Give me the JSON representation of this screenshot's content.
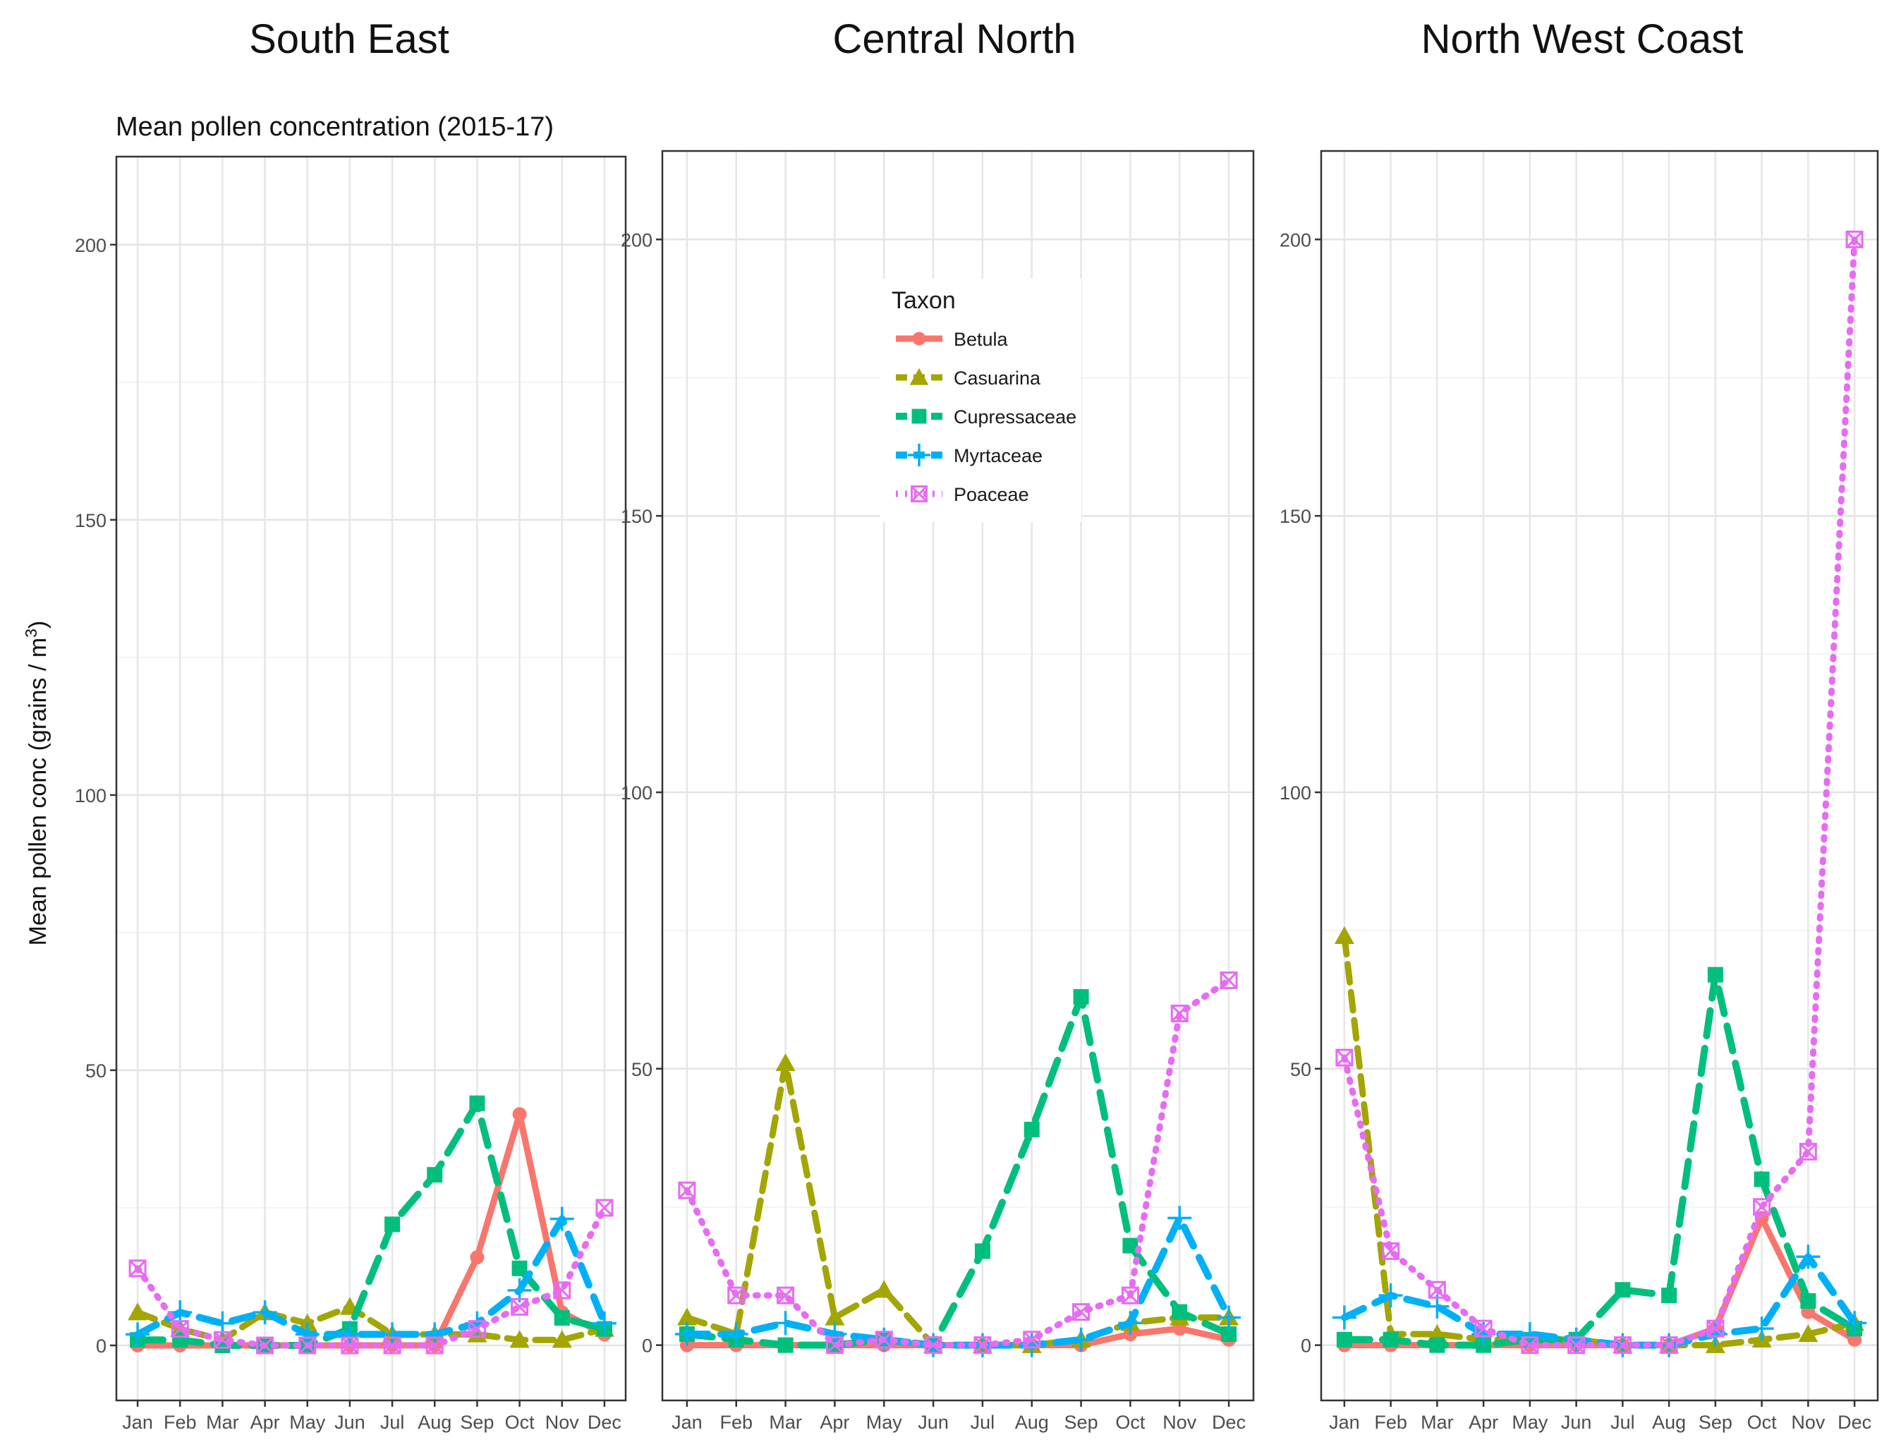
{
  "figure": {
    "subtitle": "Mean pollen concentration (2015-17)",
    "ylabel_main": "Mean pollen conc (grains / m",
    "ylabel_sup": "3",
    "ylabel_close": ")"
  },
  "legend": {
    "title": "Taxon",
    "position": "top-left of Central North panel"
  },
  "colors": {
    "Betula": "#F8766D",
    "Casuarina": "#A3A500",
    "Cupressaceae": "#00BF7D",
    "Myrtaceae": "#00B0F6",
    "Poaceae": "#E76BF3"
  },
  "chart_data": [
    {
      "type": "line",
      "title": "South East",
      "xlabel": "",
      "ylabel": "Mean pollen conc (grains / m3)",
      "ylim": [
        -10,
        216
      ],
      "yticks": [
        0,
        50,
        100,
        150,
        200
      ],
      "grid": true,
      "categories": [
        "Jan",
        "Feb",
        "Mar",
        "Apr",
        "May",
        "Jun",
        "Jul",
        "Aug",
        "Sep",
        "Oct",
        "Nov",
        "Dec"
      ],
      "series": [
        {
          "name": "Betula",
          "values": [
            0,
            0,
            0,
            0,
            0,
            0,
            0,
            0,
            16,
            42,
            6,
            2
          ]
        },
        {
          "name": "Casuarina",
          "values": [
            6,
            3,
            1,
            6,
            4,
            7,
            2,
            2,
            2,
            1,
            1,
            3
          ]
        },
        {
          "name": "Cupressaceae",
          "values": [
            1,
            1,
            0,
            0,
            0,
            3,
            22,
            31,
            44,
            14,
            5,
            3
          ]
        },
        {
          "name": "Myrtaceae",
          "values": [
            2,
            6,
            4,
            6,
            2,
            2,
            2,
            2,
            4,
            10,
            23,
            4
          ]
        },
        {
          "name": "Poaceae",
          "values": [
            14,
            3,
            1,
            0,
            0,
            0,
            0,
            0,
            3,
            7,
            10,
            25
          ]
        }
      ]
    },
    {
      "type": "line",
      "title": "Central North",
      "xlabel": "",
      "ylabel": "",
      "ylim": [
        -10,
        216
      ],
      "yticks": [
        0,
        50,
        100,
        150,
        200
      ],
      "grid": true,
      "categories": [
        "Jan",
        "Feb",
        "Mar",
        "Apr",
        "May",
        "Jun",
        "Jul",
        "Aug",
        "Sep",
        "Oct",
        "Nov",
        "Dec"
      ],
      "series": [
        {
          "name": "Betula",
          "values": [
            0,
            0,
            0,
            0,
            0,
            0,
            0,
            0,
            0,
            2,
            3,
            1
          ]
        },
        {
          "name": "Casuarina",
          "values": [
            5,
            2,
            51,
            5,
            10,
            0,
            0,
            0,
            1,
            4,
            5,
            5
          ]
        },
        {
          "name": "Cupressaceae",
          "values": [
            2,
            1,
            0,
            0,
            1,
            0,
            17,
            39,
            63,
            18,
            6,
            2
          ]
        },
        {
          "name": "Myrtaceae",
          "values": [
            2,
            2,
            4,
            2,
            1,
            0,
            0,
            0,
            1,
            4,
            23,
            5
          ]
        },
        {
          "name": "Poaceae",
          "values": [
            28,
            9,
            9,
            0,
            1,
            0,
            0,
            1,
            6,
            9,
            60,
            66
          ]
        }
      ]
    },
    {
      "type": "line",
      "title": "North West Coast",
      "xlabel": "",
      "ylabel": "",
      "ylim": [
        -10,
        216
      ],
      "yticks": [
        0,
        50,
        100,
        150,
        200
      ],
      "grid": true,
      "categories": [
        "Jan",
        "Feb",
        "Mar",
        "Apr",
        "May",
        "Jun",
        "Jul",
        "Aug",
        "Sep",
        "Oct",
        "Nov",
        "Dec"
      ],
      "series": [
        {
          "name": "Betula",
          "values": [
            0,
            0,
            0,
            0,
            0,
            0,
            0,
            0,
            3,
            23,
            6,
            1
          ]
        },
        {
          "name": "Casuarina",
          "values": [
            74,
            2,
            2,
            1,
            1,
            1,
            0,
            0,
            0,
            1,
            2,
            4
          ]
        },
        {
          "name": "Cupressaceae",
          "values": [
            1,
            1,
            0,
            0,
            1,
            1,
            10,
            9,
            67,
            30,
            8,
            3
          ]
        },
        {
          "name": "Myrtaceae",
          "values": [
            5,
            9,
            7,
            2,
            2,
            1,
            0,
            0,
            2,
            3,
            16,
            4
          ]
        },
        {
          "name": "Poaceae",
          "values": [
            52,
            17,
            10,
            3,
            0,
            0,
            0,
            0,
            3,
            25,
            35,
            200
          ]
        }
      ]
    }
  ]
}
